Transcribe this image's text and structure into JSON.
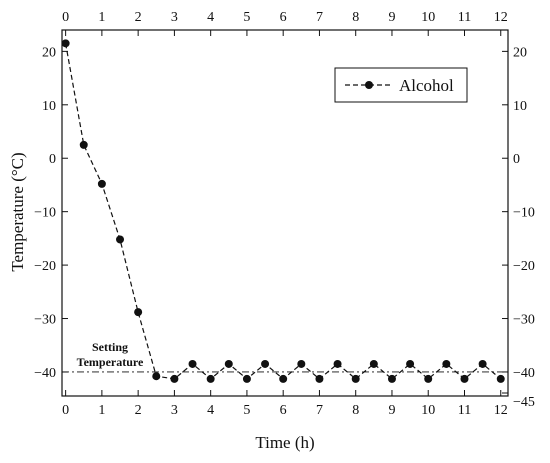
{
  "chart_data": {
    "type": "line",
    "xlabel": "Time (h)",
    "ylabel": "Temperature (°C)",
    "xlim": [
      -0.1,
      12.2
    ],
    "ylim": [
      -44.5,
      24
    ],
    "x_ticks": [
      0,
      1,
      2,
      3,
      4,
      5,
      6,
      7,
      8,
      9,
      10,
      11,
      12
    ],
    "y_ticks": [
      20,
      10,
      0,
      -10,
      -20,
      -30,
      -40
    ],
    "x_tick_labels": [
      "0",
      "1",
      "2",
      "3",
      "4",
      "5",
      "6",
      "7",
      "8",
      "9",
      "10",
      "11",
      "12"
    ],
    "y_tick_labels": [
      "20",
      "10",
      "0",
      "−10",
      "−20",
      "−30",
      "−40"
    ],
    "y2_tick_labels": [
      "20",
      "10",
      "0",
      "−10",
      "−20",
      "−30",
      "−40",
      "−45"
    ],
    "y2_ticks": [
      20,
      10,
      0,
      -10,
      -20,
      -30,
      -40,
      -45
    ],
    "grid": false,
    "legend_position": "top-right",
    "series": [
      {
        "name": "Alcohol",
        "line_style": "dashed",
        "marker": "circle",
        "color": "#111111",
        "x": [
          0,
          0.5,
          1,
          1.5,
          2,
          2.5,
          3,
          3.5,
          4,
          4.5,
          5,
          5.5,
          6,
          6.5,
          7,
          7.5,
          8,
          8.5,
          9,
          9.5,
          10,
          10.5,
          11,
          11.5,
          12
        ],
        "y": [
          21.5,
          2.5,
          -4.8,
          -15.2,
          -28.8,
          -40.8,
          -41.3,
          -38.5,
          -41.3,
          -38.5,
          -41.3,
          -38.5,
          -41.3,
          -38.5,
          -41.3,
          -38.5,
          -41.3,
          -38.5,
          -41.3,
          -38.5,
          -41.3,
          -38.5,
          -41.3,
          -38.5,
          -41.3
        ]
      }
    ],
    "reference_line": {
      "y": -40,
      "style": "dash-dot"
    },
    "annotation": {
      "line1": "Setting",
      "line2": "Temperature"
    }
  }
}
